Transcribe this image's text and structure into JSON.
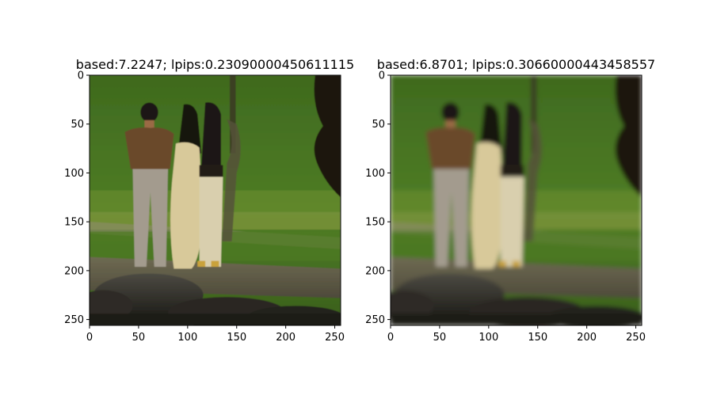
{
  "figure": {
    "background": "#ffffff"
  },
  "chart_data": [
    {
      "type": "image",
      "title": "based:7.2247; lpips:0.23090000450611115",
      "xlim": [
        0,
        256
      ],
      "ylim": [
        256,
        0
      ],
      "xticks": [
        0,
        50,
        100,
        150,
        200,
        250
      ],
      "yticks": [
        0,
        50,
        100,
        150,
        200,
        250
      ],
      "grid": false,
      "image_variant": "sharp",
      "image_description": "Three women seen from behind standing on a grassy park path, dark tree on the right, rocks in the foreground"
    },
    {
      "type": "image",
      "title": "based:6.8701; lpips:0.30660000443458557",
      "xlim": [
        0,
        256
      ],
      "ylim": [
        256,
        0
      ],
      "xticks": [
        0,
        50,
        100,
        150,
        200,
        250
      ],
      "yticks": [
        0,
        50,
        100,
        150,
        200,
        250
      ],
      "grid": false,
      "image_variant": "blurred",
      "image_description": "Same scene rendered with smoother, blurrier detail"
    }
  ]
}
